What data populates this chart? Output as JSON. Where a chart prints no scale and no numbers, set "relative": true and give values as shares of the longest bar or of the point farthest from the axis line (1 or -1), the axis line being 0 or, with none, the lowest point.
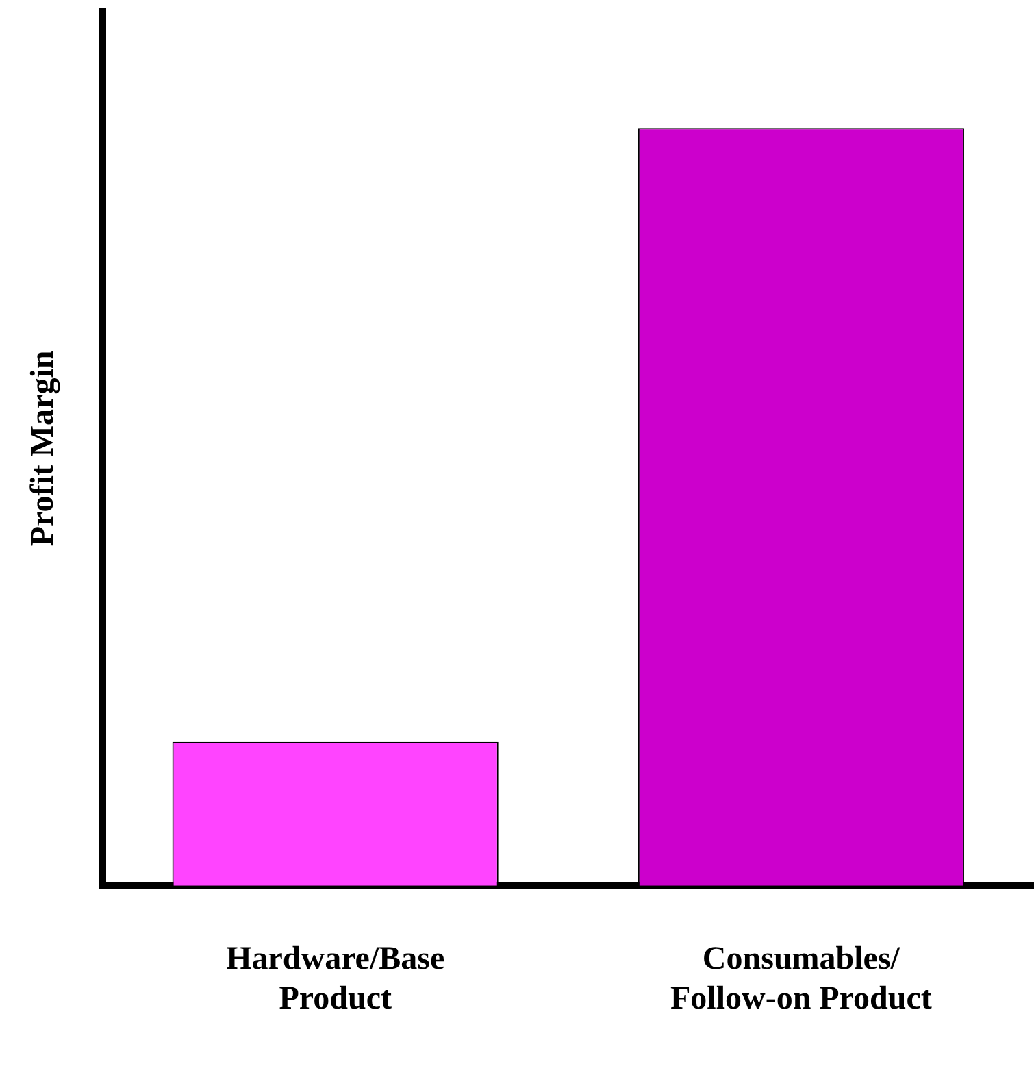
{
  "chart_data": {
    "type": "bar",
    "ylabel": "Profit Margin",
    "relative": true,
    "categories": [
      "Hardware/Base Product",
      "Consumables/ Follow-on Product"
    ],
    "values": [
      0.19,
      1
    ],
    "colors": [
      "#ff44ff",
      "#cc00cc"
    ],
    "grid": false,
    "legend": false
  }
}
